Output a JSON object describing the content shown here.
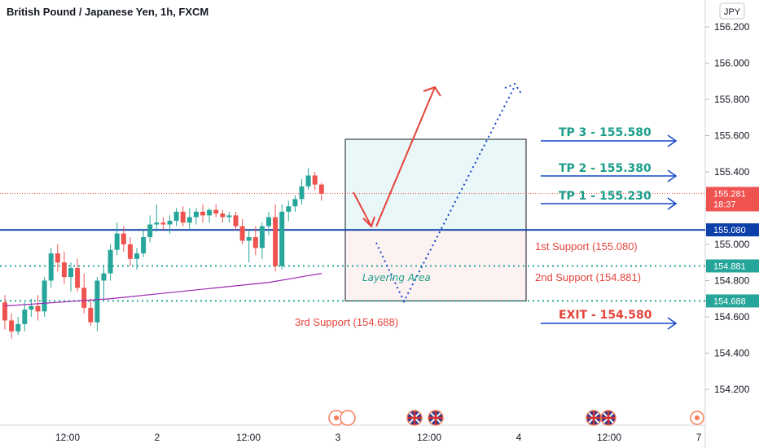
{
  "title": "British Pound / Japanese Yen, 1h, FXCM",
  "currency": "JPY",
  "colors": {
    "bull": "#26a69a",
    "bear": "#ef5350",
    "support_line": "#0d3fa8",
    "dotted_line": "#26a69a",
    "tp_text": "#1b9e8a",
    "support_text": "#e5443b",
    "arrow_blue": "#1546c8",
    "arrow_red": "#e5443b",
    "ma": "#9c27b0",
    "tp_zone": "#e9f7f9",
    "layer_zone": "#fdf2f2"
  },
  "icons": [
    "event-icon",
    "uk-flag-icon"
  ],
  "annotations": {
    "tp3": "TP 3 - 155.580",
    "tp2": "TP 2 - 155.380",
    "tp1": "TP 1 - 155.230",
    "support1": "1st Support (155.080)",
    "support2": "2nd Support (154.881)",
    "support3": "3rd Support (154.688)",
    "exit": "EXIT - 154.580",
    "layering": "Layering Area"
  },
  "badges": {
    "price": "155.281",
    "countdown": "18:37",
    "s1": "155.080",
    "s2": "154.881",
    "s3": "154.688"
  },
  "chart_data": {
    "type": "candlestick",
    "title": "British Pound / Japanese Yen, 1h, FXCM",
    "ylim": [
      154.05,
      156.27
    ],
    "y_ticks": [
      "156.200",
      "156.000",
      "155.800",
      "155.600",
      "155.400",
      "155.200",
      "155.000",
      "154.800",
      "154.600",
      "154.400",
      "154.200"
    ],
    "x_ticks": [
      "12:00",
      "2",
      "12:00",
      "3",
      "12:00",
      "4",
      "12:00",
      "7"
    ],
    "last_price": 155.281,
    "levels": {
      "tp3": 155.58,
      "tp2": 155.38,
      "tp1": 155.23,
      "support1": 155.08,
      "support2": 154.881,
      "support3": 154.688,
      "exit": 154.58
    },
    "candles": [
      [
        154.68,
        154.72,
        154.53,
        154.58
      ],
      [
        154.58,
        154.62,
        154.48,
        154.52
      ],
      [
        154.52,
        154.6,
        154.5,
        154.56
      ],
      [
        154.56,
        154.68,
        154.52,
        154.64
      ],
      [
        154.64,
        154.7,
        154.6,
        154.66
      ],
      [
        154.66,
        154.72,
        154.58,
        154.63
      ],
      [
        154.63,
        154.82,
        154.6,
        154.8
      ],
      [
        154.8,
        154.98,
        154.76,
        154.95
      ],
      [
        154.95,
        155.0,
        154.85,
        154.9
      ],
      [
        154.9,
        154.96,
        154.78,
        154.82
      ],
      [
        154.82,
        154.9,
        154.74,
        154.87
      ],
      [
        154.87,
        154.92,
        154.74,
        154.76
      ],
      [
        154.76,
        154.84,
        154.62,
        154.65
      ],
      [
        154.65,
        154.7,
        154.55,
        154.57
      ],
      [
        154.57,
        154.82,
        154.52,
        154.8
      ],
      [
        154.8,
        154.88,
        154.7,
        154.84
      ],
      [
        154.84,
        155.0,
        154.8,
        154.97
      ],
      [
        154.97,
        155.12,
        154.94,
        155.06
      ],
      [
        155.06,
        155.1,
        154.96,
        155.0
      ],
      [
        155.0,
        155.04,
        154.88,
        154.92
      ],
      [
        154.92,
        154.98,
        154.86,
        154.95
      ],
      [
        154.95,
        155.08,
        154.93,
        155.04
      ],
      [
        155.04,
        155.16,
        155.01,
        155.11
      ],
      [
        155.11,
        155.22,
        155.07,
        155.12
      ],
      [
        155.12,
        155.15,
        155.08,
        155.11
      ],
      [
        155.11,
        155.16,
        155.06,
        155.13
      ],
      [
        155.13,
        155.2,
        155.1,
        155.18
      ],
      [
        155.18,
        155.21,
        155.1,
        155.12
      ],
      [
        155.12,
        155.2,
        155.08,
        155.15
      ],
      [
        155.15,
        155.2,
        155.11,
        155.18
      ],
      [
        155.18,
        155.22,
        155.12,
        155.16
      ],
      [
        155.16,
        155.2,
        155.12,
        155.19
      ],
      [
        155.19,
        155.22,
        155.15,
        155.17
      ],
      [
        155.17,
        155.19,
        155.12,
        155.15
      ],
      [
        155.15,
        155.18,
        155.12,
        155.16
      ],
      [
        155.16,
        155.18,
        155.08,
        155.1
      ],
      [
        155.1,
        155.14,
        155.0,
        155.02
      ],
      [
        155.02,
        155.08,
        154.9,
        155.04
      ],
      [
        155.04,
        155.1,
        154.94,
        154.98
      ],
      [
        154.98,
        155.12,
        154.92,
        155.1
      ],
      [
        155.1,
        155.18,
        155.05,
        155.15
      ],
      [
        155.15,
        155.22,
        154.85,
        154.88
      ],
      [
        154.88,
        155.22,
        154.86,
        155.18
      ],
      [
        155.18,
        155.24,
        155.13,
        155.21
      ],
      [
        155.21,
        155.27,
        155.18,
        155.25
      ],
      [
        155.25,
        155.36,
        155.22,
        155.32
      ],
      [
        155.32,
        155.42,
        155.3,
        155.38
      ],
      [
        155.38,
        155.4,
        155.3,
        155.33
      ],
      [
        155.33,
        155.34,
        155.24,
        155.28
      ]
    ],
    "moving_average": [
      [
        0,
        154.66
      ],
      [
        8,
        154.68
      ],
      [
        16,
        154.7
      ],
      [
        24,
        154.73
      ],
      [
        32,
        154.76
      ],
      [
        40,
        154.79
      ],
      [
        48,
        154.84
      ]
    ]
  }
}
